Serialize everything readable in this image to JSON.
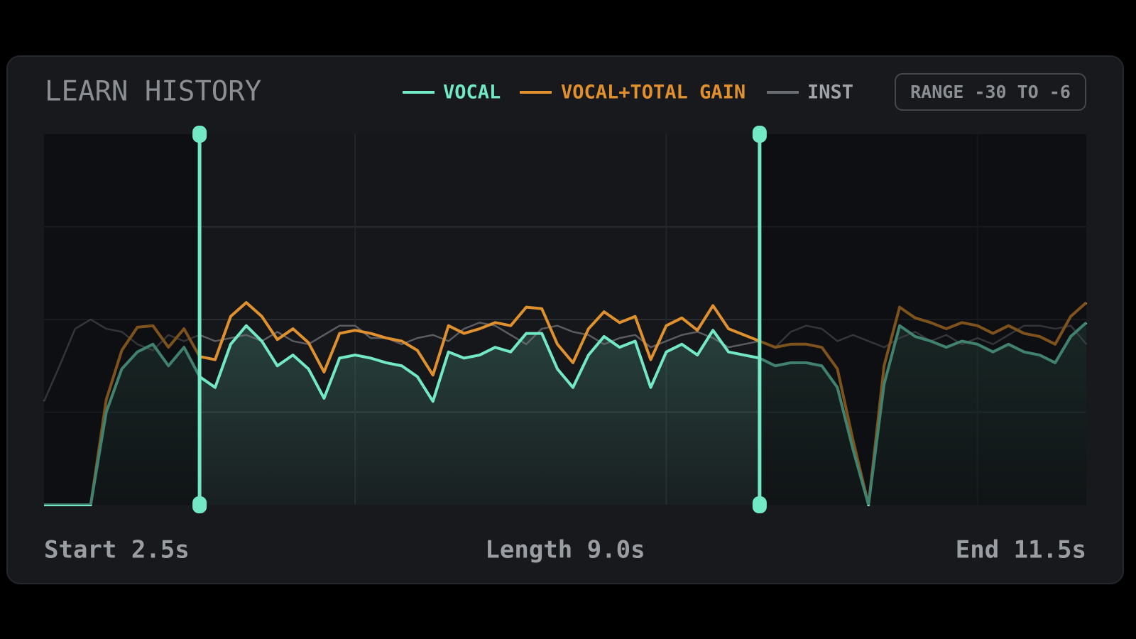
{
  "chart_data": {
    "type": "line",
    "title": "LEARN HISTORY",
    "range_label": "RANGE -30 TO -6",
    "xlim": [
      0,
      16.75
    ],
    "ylim": [
      -30,
      -6
    ],
    "xgrid": [
      5,
      10,
      15
    ],
    "ygrid": [
      -24,
      -18,
      -12
    ],
    "grid": true,
    "selection": {
      "start": 2.5,
      "end": 11.5,
      "start_label": "Start 2.5s",
      "length_label": "Length 9.0s",
      "end_label": "End 11.5s",
      "color": "#72e8c4"
    },
    "x": [
      0,
      0.25,
      0.5,
      0.75,
      1,
      1.25,
      1.5,
      1.75,
      2,
      2.25,
      2.5,
      2.75,
      3,
      3.25,
      3.5,
      3.75,
      4,
      4.25,
      4.5,
      4.75,
      5,
      5.25,
      5.5,
      5.75,
      6,
      6.25,
      6.5,
      6.75,
      7,
      7.25,
      7.5,
      7.75,
      8,
      8.25,
      8.5,
      8.75,
      9,
      9.25,
      9.5,
      9.75,
      10,
      10.25,
      10.5,
      10.75,
      11,
      11.25,
      11.5,
      11.75,
      12,
      12.25,
      12.5,
      12.75,
      13,
      13.25,
      13.5,
      13.75,
      14,
      14.25,
      14.5,
      14.75,
      15,
      15.25,
      15.5,
      15.75,
      16,
      16.25,
      16.5,
      16.75
    ],
    "series": [
      {
        "name": "VOCAL",
        "color": "#72e8c4",
        "values": [
          -30,
          -30,
          -30,
          -30,
          -24.0,
          -21.2,
          -20.1,
          -19.6,
          -21.0,
          -19.8,
          -21.7,
          -22.4,
          -19.6,
          -18.4,
          -19.4,
          -21.0,
          -20.3,
          -21.2,
          -23.1,
          -20.5,
          -20.3,
          -20.5,
          -20.8,
          -21.0,
          -21.7,
          -23.3,
          -20.1,
          -20.5,
          -20.3,
          -19.8,
          -20.1,
          -18.9,
          -18.9,
          -21.2,
          -22.4,
          -20.3,
          -19.1,
          -19.8,
          -19.4,
          -22.4,
          -20.1,
          -19.6,
          -20.3,
          -18.7,
          -20.1,
          -20.3,
          -20.5,
          -21.0,
          -20.8,
          -20.8,
          -21.0,
          -22.4,
          -26.4,
          -30,
          -22.2,
          -18.4,
          -19.1,
          -19.4,
          -19.8,
          -19.4,
          -19.6,
          -20.1,
          -19.6,
          -20.1,
          -20.3,
          -20.8,
          -19.1,
          -18.2
        ]
      },
      {
        "name": "VOCAL+TOTAL GAIN",
        "color": "#e0912e",
        "values": [
          -30,
          -30,
          -30,
          -30,
          -23.2,
          -20.0,
          -18.5,
          -18.4,
          -19.8,
          -18.6,
          -20.4,
          -20.6,
          -17.8,
          -16.9,
          -17.8,
          -19.3,
          -18.6,
          -19.5,
          -21.4,
          -18.9,
          -18.7,
          -18.9,
          -19.2,
          -19.4,
          -20.0,
          -21.6,
          -18.4,
          -18.9,
          -18.6,
          -18.2,
          -18.4,
          -17.2,
          -17.3,
          -19.6,
          -20.8,
          -18.6,
          -17.5,
          -18.2,
          -17.8,
          -20.6,
          -18.4,
          -17.9,
          -18.7,
          -17.1,
          -18.6,
          -19.0,
          -19.4,
          -19.8,
          -19.6,
          -19.6,
          -19.8,
          -21.2,
          -25.8,
          -30,
          -21.0,
          -17.2,
          -17.9,
          -18.2,
          -18.6,
          -18.2,
          -18.4,
          -18.9,
          -18.4,
          -18.9,
          -19.1,
          -19.6,
          -17.8,
          -16.9
        ]
      },
      {
        "name": "INST",
        "color": "#6b6e73",
        "values": [
          -23.3,
          -21.0,
          -18.6,
          -18.0,
          -18.6,
          -18.8,
          -19.6,
          -20.0,
          -19.0,
          -19.4,
          -19.0,
          -19.4,
          -19.2,
          -19.0,
          -19.4,
          -18.8,
          -19.4,
          -19.6,
          -19.0,
          -18.4,
          -18.4,
          -19.2,
          -19.2,
          -19.6,
          -19.2,
          -19.0,
          -19.4,
          -18.6,
          -18.2,
          -18.4,
          -19.0,
          -19.6,
          -18.6,
          -18.4,
          -18.8,
          -19.0,
          -19.6,
          -19.2,
          -19.0,
          -19.8,
          -19.4,
          -19.0,
          -18.8,
          -19.2,
          -19.8,
          -19.6,
          -19.4,
          -19.8,
          -18.8,
          -18.4,
          -18.6,
          -19.4,
          -19.0,
          -19.4,
          -19.8,
          -19.2,
          -18.8,
          -19.4,
          -19.0,
          -19.6,
          -19.2,
          -19.6,
          -19.0,
          -18.4,
          -18.4,
          -18.6,
          -18.4,
          -19.6
        ]
      }
    ]
  }
}
